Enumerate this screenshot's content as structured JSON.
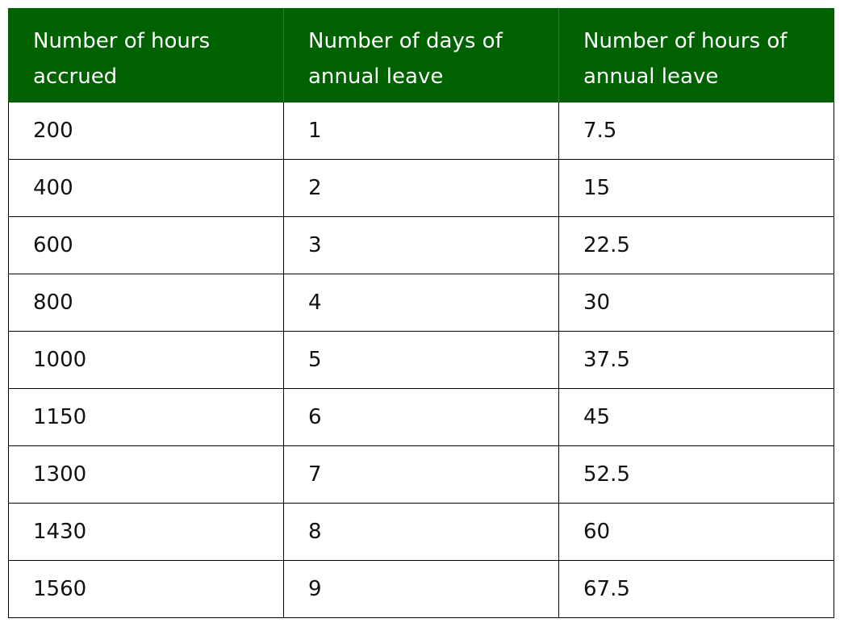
{
  "table": {
    "headers": [
      "Number of hours accrued",
      "Number of days of annual leave",
      "Number of hours of annual leave"
    ],
    "rows": [
      [
        "200",
        "1",
        "7.5"
      ],
      [
        "400",
        "2",
        "15"
      ],
      [
        "600",
        "3",
        "22.5"
      ],
      [
        "800",
        "4",
        "30"
      ],
      [
        "1000",
        "5",
        "37.5"
      ],
      [
        "1150",
        "6",
        "45"
      ],
      [
        "1300",
        "7",
        "52.5"
      ],
      [
        "1430",
        "8",
        "60"
      ],
      [
        "1560",
        "9",
        "67.5"
      ]
    ],
    "header_bg": "#006100",
    "header_text_color": "#ffffff"
  }
}
